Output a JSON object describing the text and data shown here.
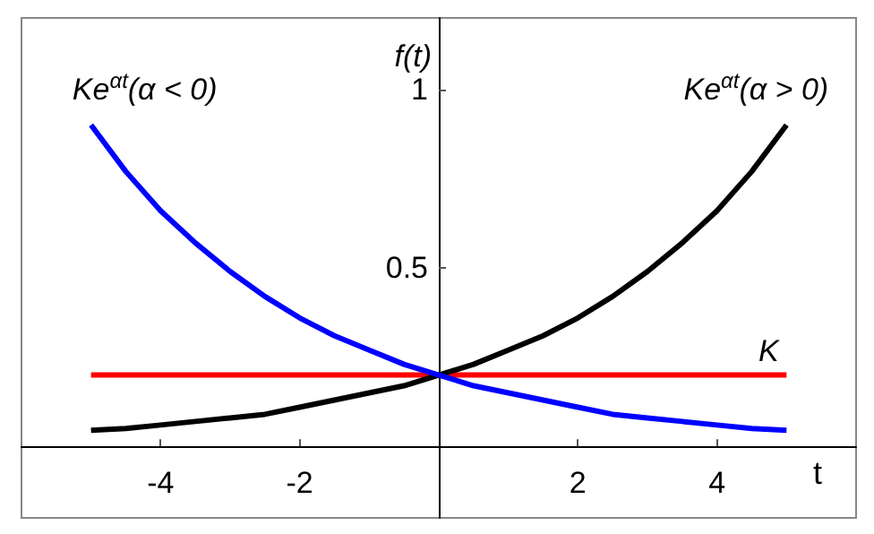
{
  "chart_data": {
    "type": "line",
    "xlabel": "t",
    "ylabel": "f(t)",
    "x": [
      -5,
      -4.5,
      -4,
      -3.5,
      -3,
      -2.5,
      -2,
      -1.5,
      -1,
      -0.5,
      0,
      0.5,
      1,
      1.5,
      2,
      2.5,
      3,
      3.5,
      4,
      4.5,
      5
    ],
    "series": [
      {
        "name": "Ke$^{αt}$(α < 0)",
        "color": "#0000ff",
        "values": [
          0.9,
          0.77,
          0.66,
          0.57,
          0.49,
          0.42,
          0.36,
          0.31,
          0.27,
          0.23,
          0.2,
          0.17,
          0.15,
          0.13,
          0.11,
          0.09,
          0.08,
          0.07,
          0.06,
          0.05,
          0.045
        ]
      },
      {
        "name": "Ke$^{αt}$(α > 0)",
        "color": "#000000",
        "values": [
          0.045,
          0.05,
          0.06,
          0.07,
          0.08,
          0.09,
          0.11,
          0.13,
          0.15,
          0.17,
          0.2,
          0.23,
          0.27,
          0.31,
          0.36,
          0.42,
          0.49,
          0.57,
          0.66,
          0.77,
          0.9
        ]
      },
      {
        "name": "K",
        "color": "#ff0000",
        "x": [
          -5,
          5
        ],
        "values": [
          0.2,
          0.2
        ]
      }
    ],
    "xlim": [
      -6,
      6
    ],
    "ylim": [
      -0.2,
      1.2
    ],
    "xticks": [
      -4,
      -2,
      2,
      4
    ],
    "yticks": [
      0.5,
      1
    ],
    "grid": false,
    "marker": "none"
  }
}
